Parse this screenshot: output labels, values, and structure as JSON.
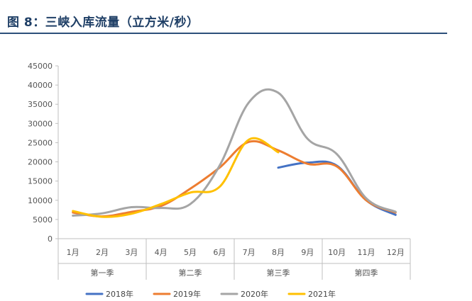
{
  "figure": {
    "title": "图 8：三峡入库流量（立方米/秒）",
    "title_color": "#1f3f66",
    "rule_color": "#2d4f7a"
  },
  "chart_data": {
    "type": "line",
    "title": "",
    "xlabel": "",
    "ylabel": "",
    "categories": [
      "1月",
      "2月",
      "3月",
      "4月",
      "5月",
      "6月",
      "7月",
      "8月",
      "9月",
      "10月",
      "11月",
      "12月"
    ],
    "groups": [
      {
        "label": "第一季",
        "months": [
          "1月",
          "2月",
          "3月"
        ]
      },
      {
        "label": "第二季",
        "months": [
          "4月",
          "5月",
          "6月"
        ]
      },
      {
        "label": "第三季",
        "months": [
          "7月",
          "8月",
          "9月"
        ]
      },
      {
        "label": "第四季",
        "months": [
          "10月",
          "11月",
          "12月"
        ]
      }
    ],
    "ylim": [
      0,
      45000
    ],
    "yticks": [
      0,
      5000,
      10000,
      15000,
      20000,
      25000,
      30000,
      35000,
      40000,
      45000
    ],
    "grid": false,
    "legend_position": "bottom",
    "smooth": true,
    "series": [
      {
        "name": "2018年",
        "color": "#4472c4",
        "values": [
          null,
          null,
          null,
          null,
          null,
          null,
          null,
          18500,
          19800,
          19000,
          10000,
          6200
        ]
      },
      {
        "name": "2019年",
        "color": "#ed7d31",
        "values": [
          6800,
          5800,
          7000,
          8500,
          13000,
          18500,
          25200,
          23000,
          19500,
          18800,
          10000,
          6800
        ]
      },
      {
        "name": "2020年",
        "color": "#a5a5a5",
        "values": [
          6000,
          6600,
          8200,
          8000,
          9000,
          19000,
          35500,
          38000,
          26000,
          22000,
          10500,
          7000
        ]
      },
      {
        "name": "2021年",
        "color": "#ffc000",
        "values": [
          7200,
          5700,
          6500,
          9000,
          12000,
          13500,
          25800,
          22500,
          null,
          null,
          null,
          null
        ]
      }
    ]
  }
}
